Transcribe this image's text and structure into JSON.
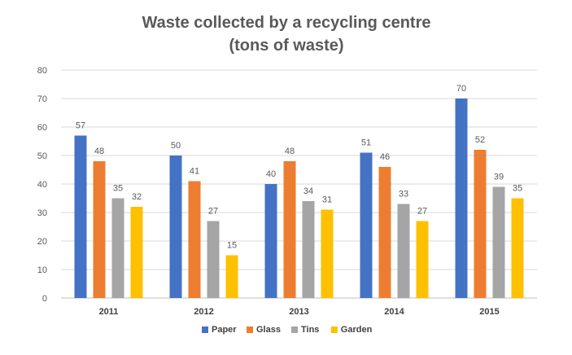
{
  "chart_data": {
    "type": "bar",
    "title": "Waste collected by a recycling centre",
    "subtitle": "(tons of waste)",
    "xlabel": "",
    "ylabel": "",
    "categories": [
      "2011",
      "2012",
      "2013",
      "2014",
      "2015"
    ],
    "series": [
      {
        "name": "Paper",
        "color": "#4472C4",
        "values": [
          57,
          50,
          40,
          51,
          70
        ]
      },
      {
        "name": "Glass",
        "color": "#ED7D31",
        "values": [
          48,
          41,
          48,
          46,
          52
        ]
      },
      {
        "name": "Tins",
        "color": "#A5A5A5",
        "values": [
          35,
          27,
          34,
          33,
          39
        ]
      },
      {
        "name": "Garden",
        "color": "#FFC000",
        "values": [
          32,
          15,
          31,
          27,
          35
        ]
      }
    ],
    "ylim": [
      0,
      80
    ],
    "yticks": [
      0,
      10,
      20,
      30,
      40,
      50,
      60,
      70,
      80
    ],
    "grid": true,
    "legend_position": "bottom",
    "data_labels": true
  }
}
